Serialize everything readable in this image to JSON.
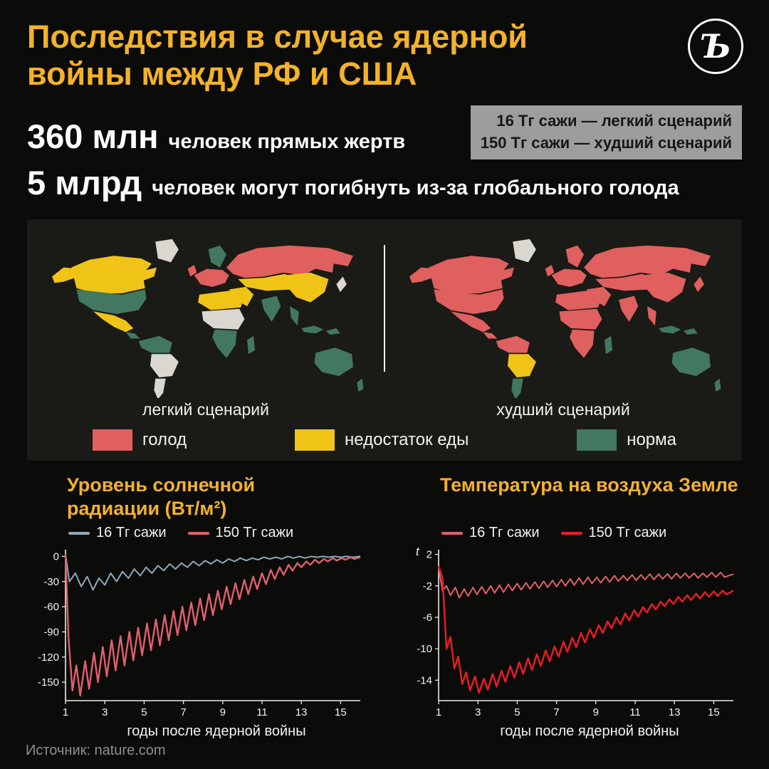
{
  "page": {
    "bg_color": "#0b0b09",
    "accent_color": "#f3b229"
  },
  "header": {
    "title_line1": "Последствия в случае ядерной",
    "title_line2": "войны между РФ и США",
    "logo_glyph": "Ъ"
  },
  "scenario_legend": {
    "line1": "16 Тг сажи — легкий сценарий",
    "line2": "150 Тг сажи — худший сценарий"
  },
  "stats": [
    {
      "value": "360 млн",
      "label": "человек прямых жертв"
    },
    {
      "value": "5 млрд",
      "label": "человек могут погибнуть из-за глобального голода"
    }
  ],
  "maps": {
    "left_caption": "легкий сценарий",
    "right_caption": "худший сценарий",
    "nodata_color": "#d9d7d0",
    "legend": [
      {
        "label": "голод",
        "color": "#df605e"
      },
      {
        "label": "недостаток еды",
        "color": "#f0c417"
      },
      {
        "label": "норма",
        "color": "#41785f"
      }
    ]
  },
  "chart_data": [
    {
      "type": "line",
      "title_line1": "Уровень солнечной",
      "title_line2": "радиации (Вт/м²)",
      "xlabel": "годы после ядерной войны",
      "xlim": [
        1,
        16
      ],
      "ylim": [
        -172,
        8
      ],
      "xticks": [
        1,
        3,
        5,
        7,
        9,
        11,
        13,
        15
      ],
      "yticks": [
        0,
        -30,
        -60,
        -90,
        -120,
        -150
      ],
      "series": [
        {
          "name": "16 Тг сажи",
          "color": "#8ea9b9",
          "points": [
            [
              1,
              2
            ],
            [
              1.2,
              -30
            ],
            [
              1.5,
              -20
            ],
            [
              1.8,
              -36
            ],
            [
              2.1,
              -24
            ],
            [
              2.4,
              -40
            ],
            [
              2.7,
              -26
            ],
            [
              3,
              -34
            ],
            [
              3.3,
              -20
            ],
            [
              3.6,
              -30
            ],
            [
              3.9,
              -18
            ],
            [
              4.2,
              -26
            ],
            [
              4.5,
              -15
            ],
            [
              4.8,
              -23
            ],
            [
              5.1,
              -13
            ],
            [
              5.4,
              -20
            ],
            [
              5.7,
              -11
            ],
            [
              6,
              -17
            ],
            [
              6.3,
              -9
            ],
            [
              6.6,
              -15
            ],
            [
              6.9,
              -8
            ],
            [
              7.2,
              -13
            ],
            [
              7.5,
              -6
            ],
            [
              7.8,
              -11
            ],
            [
              8.1,
              -5
            ],
            [
              8.4,
              -9
            ],
            [
              8.7,
              -4
            ],
            [
              9,
              -8
            ],
            [
              9.3,
              -3
            ],
            [
              9.6,
              -6
            ],
            [
              9.9,
              -2
            ],
            [
              10.2,
              -5
            ],
            [
              10.5,
              -2
            ],
            [
              10.8,
              -4
            ],
            [
              11.1,
              -1
            ],
            [
              11.4,
              -3
            ],
            [
              11.7,
              -1
            ],
            [
              12,
              -3
            ],
            [
              12.3,
              0
            ],
            [
              12.6,
              -2
            ],
            [
              12.9,
              0
            ],
            [
              13.2,
              -2
            ],
            [
              13.5,
              0
            ],
            [
              13.8,
              -1
            ],
            [
              14.1,
              0
            ],
            [
              14.4,
              -1
            ],
            [
              14.7,
              0
            ],
            [
              15,
              -1
            ],
            [
              15.3,
              0
            ],
            [
              15.6,
              -1
            ],
            [
              16,
              0
            ]
          ]
        },
        {
          "name": "150 Тг сажи",
          "color": "#e0606c",
          "points": [
            [
              1,
              2
            ],
            [
              1.15,
              -95
            ],
            [
              1.35,
              -160
            ],
            [
              1.55,
              -130
            ],
            [
              1.75,
              -166
            ],
            [
              2,
              -125
            ],
            [
              2.2,
              -158
            ],
            [
              2.45,
              -115
            ],
            [
              2.65,
              -150
            ],
            [
              2.9,
              -108
            ],
            [
              3.1,
              -143
            ],
            [
              3.35,
              -100
            ],
            [
              3.55,
              -136
            ],
            [
              3.8,
              -95
            ],
            [
              4,
              -130
            ],
            [
              4.25,
              -90
            ],
            [
              4.45,
              -124
            ],
            [
              4.7,
              -85
            ],
            [
              4.9,
              -118
            ],
            [
              5.15,
              -80
            ],
            [
              5.35,
              -112
            ],
            [
              5.6,
              -75
            ],
            [
              5.8,
              -106
            ],
            [
              6.05,
              -70
            ],
            [
              6.25,
              -100
            ],
            [
              6.5,
              -65
            ],
            [
              6.7,
              -94
            ],
            [
              6.95,
              -60
            ],
            [
              7.15,
              -88
            ],
            [
              7.4,
              -55
            ],
            [
              7.6,
              -82
            ],
            [
              7.85,
              -50
            ],
            [
              8.05,
              -76
            ],
            [
              8.3,
              -45
            ],
            [
              8.5,
              -70
            ],
            [
              8.75,
              -41
            ],
            [
              8.95,
              -63
            ],
            [
              9.2,
              -36
            ],
            [
              9.4,
              -57
            ],
            [
              9.65,
              -32
            ],
            [
              9.85,
              -51
            ],
            [
              10.1,
              -28
            ],
            [
              10.3,
              -45
            ],
            [
              10.55,
              -24
            ],
            [
              10.75,
              -39
            ],
            [
              11,
              -20
            ],
            [
              11.2,
              -33
            ],
            [
              11.45,
              -16
            ],
            [
              11.65,
              -27
            ],
            [
              11.9,
              -13
            ],
            [
              12.1,
              -22
            ],
            [
              12.35,
              -10
            ],
            [
              12.55,
              -17
            ],
            [
              12.8,
              -8
            ],
            [
              13,
              -13
            ],
            [
              13.25,
              -6
            ],
            [
              13.45,
              -10
            ],
            [
              13.7,
              -4
            ],
            [
              13.9,
              -8
            ],
            [
              14.15,
              -3
            ],
            [
              14.35,
              -6
            ],
            [
              14.6,
              -2
            ],
            [
              14.8,
              -5
            ],
            [
              15.05,
              -2
            ],
            [
              15.25,
              -4
            ],
            [
              15.5,
              -1
            ],
            [
              15.7,
              -3
            ],
            [
              16,
              -1
            ]
          ]
        }
      ]
    },
    {
      "type": "line",
      "title_line1": "Температура на воздуха Земле",
      "title_line2": "",
      "xlabel": "годы после ядерной войны",
      "y_axis_label": "t",
      "xlim": [
        1,
        16
      ],
      "ylim": [
        -16.6,
        2.6
      ],
      "xticks": [
        1,
        3,
        5,
        7,
        9,
        11,
        13,
        15
      ],
      "yticks": [
        2,
        -2,
        -6,
        -10,
        -14
      ],
      "series": [
        {
          "name": "16 Тг сажи",
          "color": "#e0606c",
          "points": [
            [
              1,
              0.3
            ],
            [
              1.2,
              -2.6
            ],
            [
              1.4,
              -2
            ],
            [
              1.6,
              -3.2
            ],
            [
              1.85,
              -2.2
            ],
            [
              2.05,
              -3.5
            ],
            [
              2.3,
              -2.4
            ],
            [
              2.5,
              -3.3
            ],
            [
              2.75,
              -2.2
            ],
            [
              2.95,
              -3.1
            ],
            [
              3.2,
              -2.1
            ],
            [
              3.4,
              -3
            ],
            [
              3.65,
              -2
            ],
            [
              3.85,
              -2.9
            ],
            [
              4.1,
              -1.9
            ],
            [
              4.3,
              -2.8
            ],
            [
              4.55,
              -1.8
            ],
            [
              4.75,
              -2.6
            ],
            [
              5,
              -1.7
            ],
            [
              5.2,
              -2.5
            ],
            [
              5.45,
              -1.6
            ],
            [
              5.65,
              -2.4
            ],
            [
              5.9,
              -1.5
            ],
            [
              6.1,
              -2.3
            ],
            [
              6.35,
              -1.4
            ],
            [
              6.55,
              -2.2
            ],
            [
              6.8,
              -1.3
            ],
            [
              7,
              -2.1
            ],
            [
              7.25,
              -1.2
            ],
            [
              7.45,
              -2
            ],
            [
              7.7,
              -1.1
            ],
            [
              7.9,
              -1.9
            ],
            [
              8.15,
              -1
            ],
            [
              8.35,
              -1.8
            ],
            [
              8.6,
              -0.9
            ],
            [
              8.8,
              -1.7
            ],
            [
              9.05,
              -0.9
            ],
            [
              9.25,
              -1.6
            ],
            [
              9.5,
              -0.8
            ],
            [
              9.7,
              -1.5
            ],
            [
              9.95,
              -0.7
            ],
            [
              10.15,
              -1.4
            ],
            [
              10.4,
              -0.7
            ],
            [
              10.6,
              -1.3
            ],
            [
              10.85,
              -0.6
            ],
            [
              11.05,
              -1.3
            ],
            [
              11.3,
              -0.6
            ],
            [
              11.5,
              -1.2
            ],
            [
              11.75,
              -0.5
            ],
            [
              11.95,
              -1.2
            ],
            [
              12.2,
              -0.5
            ],
            [
              12.4,
              -1.1
            ],
            [
              12.65,
              -0.5
            ],
            [
              12.85,
              -1.1
            ],
            [
              13.1,
              -0.4
            ],
            [
              13.3,
              -1
            ],
            [
              13.55,
              -0.4
            ],
            [
              13.75,
              -1
            ],
            [
              14,
              -0.4
            ],
            [
              14.2,
              -1
            ],
            [
              14.45,
              -0.4
            ],
            [
              14.65,
              -0.9
            ],
            [
              14.9,
              -0.3
            ],
            [
              15.1,
              -0.9
            ],
            [
              15.35,
              -0.3
            ],
            [
              15.55,
              -0.9
            ],
            [
              16,
              -0.5
            ]
          ]
        },
        {
          "name": "150 Тг сажи",
          "color": "#ec1c24",
          "points": [
            [
              1,
              0.5
            ],
            [
              1.2,
              -1
            ],
            [
              1.4,
              -10
            ],
            [
              1.6,
              -8.5
            ],
            [
              1.8,
              -12.5
            ],
            [
              2,
              -11
            ],
            [
              2.2,
              -14.5
            ],
            [
              2.4,
              -13
            ],
            [
              2.6,
              -15.3
            ],
            [
              2.85,
              -13.5
            ],
            [
              3.05,
              -15.6
            ],
            [
              3.3,
              -13.8
            ],
            [
              3.5,
              -15.2
            ],
            [
              3.75,
              -13.2
            ],
            [
              3.95,
              -14.8
            ],
            [
              4.2,
              -12.8
            ],
            [
              4.4,
              -14.2
            ],
            [
              4.65,
              -12.2
            ],
            [
              4.85,
              -13.7
            ],
            [
              5.1,
              -11.7
            ],
            [
              5.3,
              -13.2
            ],
            [
              5.55,
              -11.2
            ],
            [
              5.75,
              -12.7
            ],
            [
              6,
              -10.7
            ],
            [
              6.2,
              -12.2
            ],
            [
              6.45,
              -10.2
            ],
            [
              6.65,
              -11.6
            ],
            [
              6.9,
              -9.7
            ],
            [
              7.1,
              -11
            ],
            [
              7.35,
              -9.1
            ],
            [
              7.55,
              -10.4
            ],
            [
              7.8,
              -8.6
            ],
            [
              8,
              -9.8
            ],
            [
              8.25,
              -8
            ],
            [
              8.45,
              -9.2
            ],
            [
              8.7,
              -7.5
            ],
            [
              8.9,
              -8.6
            ],
            [
              9.15,
              -7
            ],
            [
              9.35,
              -8
            ],
            [
              9.6,
              -6.5
            ],
            [
              9.8,
              -7.4
            ],
            [
              10.05,
              -6
            ],
            [
              10.25,
              -6.9
            ],
            [
              10.5,
              -5.5
            ],
            [
              10.7,
              -6.4
            ],
            [
              10.95,
              -5.1
            ],
            [
              11.15,
              -5.9
            ],
            [
              11.4,
              -4.7
            ],
            [
              11.6,
              -5.4
            ],
            [
              11.85,
              -4.3
            ],
            [
              12.05,
              -5
            ],
            [
              12.3,
              -4
            ],
            [
              12.5,
              -4.6
            ],
            [
              12.75,
              -3.7
            ],
            [
              12.95,
              -4.3
            ],
            [
              13.2,
              -3.4
            ],
            [
              13.4,
              -4
            ],
            [
              13.65,
              -3.2
            ],
            [
              13.85,
              -3.8
            ],
            [
              14.1,
              -3
            ],
            [
              14.3,
              -3.6
            ],
            [
              14.55,
              -2.8
            ],
            [
              14.75,
              -3.4
            ],
            [
              15,
              -2.7
            ],
            [
              15.2,
              -3.3
            ],
            [
              15.45,
              -2.6
            ],
            [
              15.65,
              -3.1
            ],
            [
              16,
              -2.6
            ]
          ]
        }
      ]
    }
  ],
  "footer": {
    "source": "Источник: nature.com"
  }
}
